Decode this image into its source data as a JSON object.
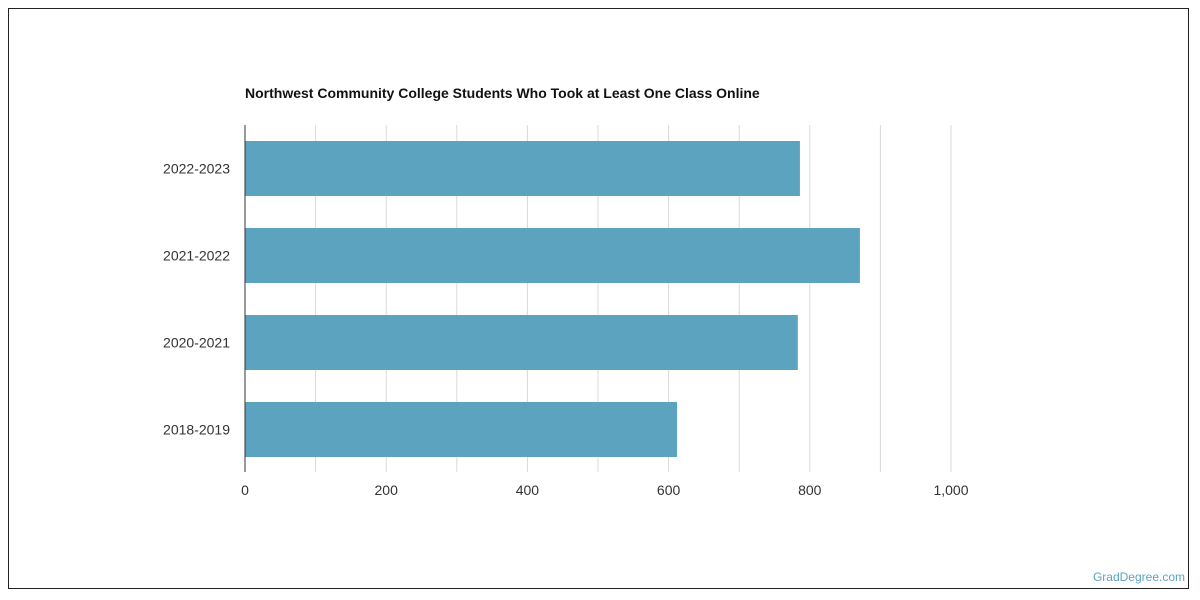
{
  "chart_data": {
    "type": "bar",
    "orientation": "horizontal",
    "title": "Northwest Community College Students Who Took at Least One Class Online",
    "categories": [
      "2022-2023",
      "2021-2022",
      "2020-2021",
      "2018-2019"
    ],
    "values": [
      786,
      871,
      783,
      612
    ],
    "xlim": [
      0,
      1000
    ],
    "x_ticks": [
      0,
      200,
      400,
      600,
      800,
      1000
    ],
    "x_tick_labels": [
      "0",
      "200",
      "400",
      "600",
      "800",
      "1,000"
    ],
    "xlabel": "",
    "ylabel": "",
    "grid": true,
    "colors": {
      "bar": "#5ba3bf",
      "grid": "#d9d9d9",
      "axis": "#333333"
    }
  },
  "watermark": "GradDegree.com"
}
